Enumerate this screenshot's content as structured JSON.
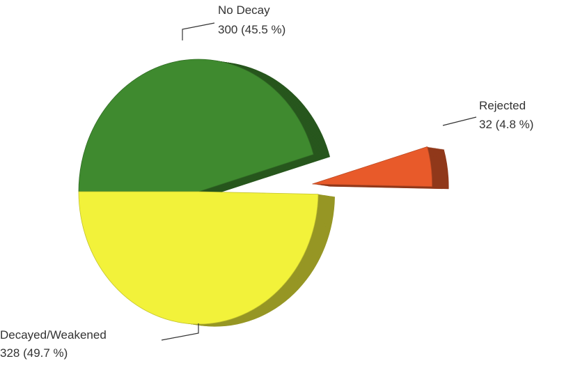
{
  "chart_data": {
    "type": "pie",
    "categories": [
      "No Decay",
      "Rejected",
      "Decayed/Weakened"
    ],
    "values": [
      300,
      32,
      328
    ],
    "value_labels": [
      "300  (45.5 %)",
      "32  (4.8 %)",
      "328  (49.7 %)"
    ],
    "colors": [
      "#3f8a2f",
      "#e85a2a",
      "#f2f23a"
    ],
    "exploded": [
      "Rejected"
    ]
  }
}
